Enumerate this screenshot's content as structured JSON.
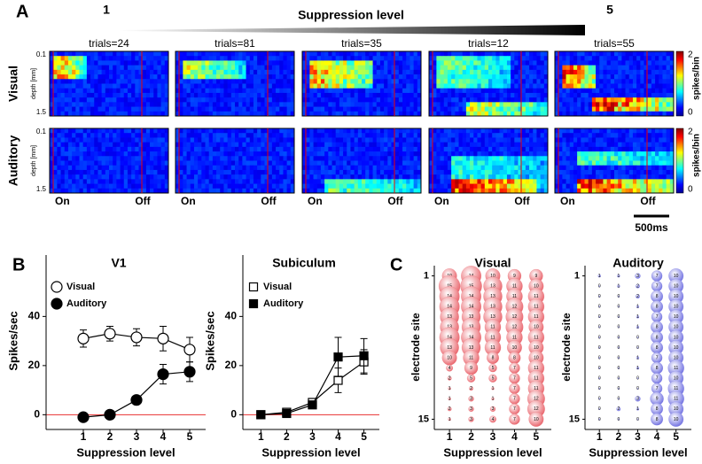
{
  "panel_a": {
    "label": "A",
    "title": "Suppression level",
    "level_start": 1,
    "level_end": 5,
    "trials": [
      "trials=24",
      "trials=81",
      "trials=35",
      "trials=12",
      "trials=55"
    ],
    "row_labels": [
      "Visual",
      "Auditory"
    ],
    "depth_label": "depth [mm]",
    "depth_ticks": [
      0.1,
      1.5
    ],
    "colorbar": {
      "label": "spikes/bin",
      "ticks": [
        2,
        0
      ]
    },
    "on_label": "On",
    "off_label": "Off",
    "scale_bar": "500ms"
  },
  "panel_b_label": "B",
  "panel_c_label": "C",
  "chart_data": [
    {
      "type": "line",
      "title": "V1",
      "x": [
        1,
        2,
        3,
        4,
        5
      ],
      "xlim": [
        -0.4,
        5.6
      ],
      "xticks": [
        1,
        2,
        3,
        4,
        5
      ],
      "ylim": [
        -6,
        65
      ],
      "yticks": [
        0,
        20,
        40
      ],
      "xlabel": "Suppression level",
      "ylabel": "Spikes/sec",
      "reference_line": 0,
      "reference_color": "#e83030",
      "marker": "circle",
      "series": [
        {
          "name": "Visual",
          "filled": false,
          "values": [
            31,
            33,
            31.5,
            31,
            26.5
          ],
          "errors": [
            3.5,
            3,
            3.5,
            5,
            5
          ]
        },
        {
          "name": "Auditory",
          "filled": true,
          "values": [
            -1,
            0,
            6,
            16.5,
            17.5
          ],
          "errors": [
            0.5,
            0.5,
            0.5,
            4,
            4
          ]
        }
      ]
    },
    {
      "type": "line",
      "title": "Subiculum",
      "x": [
        1,
        2,
        3,
        4,
        5
      ],
      "xlim": [
        0.3,
        5.6
      ],
      "xticks": [
        1,
        2,
        3,
        4,
        5
      ],
      "ylim": [
        -6,
        65
      ],
      "yticks": [
        0,
        20,
        40
      ],
      "xlabel": "Suppression level",
      "ylabel": "Spikes/sec",
      "reference_line": 0,
      "reference_color": "#e83030",
      "marker": "square",
      "series": [
        {
          "name": "Visual",
          "filled": false,
          "values": [
            0,
            1,
            5,
            14,
            21.5
          ],
          "errors": [
            1,
            1,
            1.5,
            5,
            5
          ]
        },
        {
          "name": "Auditory",
          "filled": true,
          "values": [
            0,
            0.5,
            4,
            23.5,
            24
          ],
          "errors": [
            1,
            1,
            1.5,
            8,
            7
          ]
        }
      ]
    },
    {
      "type": "bubble",
      "title": "Visual",
      "color": "#e85c64",
      "xlim": [
        0.3,
        5.7
      ],
      "xticks": [
        1,
        2,
        3,
        4,
        5
      ],
      "ylim": [
        16,
        0
      ],
      "yticks": [
        1,
        15
      ],
      "xlabel": "Suppression level",
      "ylabel": "electrode site",
      "values": [
        [
          10,
          14,
          10,
          9,
          9
        ],
        [
          15,
          15,
          13,
          11,
          10
        ],
        [
          14,
          14,
          13,
          11,
          11
        ],
        [
          14,
          14,
          13,
          12,
          11
        ],
        [
          13,
          13,
          13,
          12,
          11
        ],
        [
          13,
          13,
          11,
          12,
          10
        ],
        [
          14,
          14,
          11,
          11,
          11
        ],
        [
          13,
          13,
          11,
          10,
          10
        ],
        [
          10,
          11,
          8,
          8,
          10
        ],
        [
          4,
          9,
          5,
          7,
          11
        ],
        [
          2,
          5,
          5,
          7,
          11
        ],
        [
          1,
          2,
          1,
          7,
          11
        ],
        [
          1,
          3,
          1,
          7,
          12
        ],
        [
          2,
          3,
          3,
          7,
          12
        ],
        [
          1,
          3,
          4,
          7,
          10
        ]
      ]
    },
    {
      "type": "bubble",
      "title": "Auditory",
      "color": "#6b6be0",
      "xlim": [
        0.25,
        5.8
      ],
      "xticks": [
        1,
        2,
        3,
        4,
        5
      ],
      "ylim": [
        16,
        0
      ],
      "yticks": [
        1,
        15
      ],
      "xlabel": "Suppression level",
      "ylabel": "electrode site",
      "values": [
        [
          1,
          1,
          3,
          7,
          10
        ],
        [
          0,
          1,
          2,
          7,
          10
        ],
        [
          0,
          0,
          2,
          8,
          10
        ],
        [
          0,
          0,
          1,
          8,
          10
        ],
        [
          0,
          0,
          1,
          7,
          10
        ],
        [
          0,
          0,
          1,
          8,
          10
        ],
        [
          0,
          0,
          0,
          8,
          10
        ],
        [
          0,
          0,
          0,
          8,
          10
        ],
        [
          0,
          0,
          1,
          7,
          10
        ],
        [
          0,
          0,
          1,
          8,
          11
        ],
        [
          0,
          0,
          0,
          7,
          10
        ],
        [
          0,
          0,
          0,
          7,
          11
        ],
        [
          0,
          0,
          3,
          9,
          11
        ],
        [
          0,
          2,
          1,
          8,
          10
        ],
        [
          0,
          0,
          0,
          8,
          10
        ]
      ]
    }
  ]
}
